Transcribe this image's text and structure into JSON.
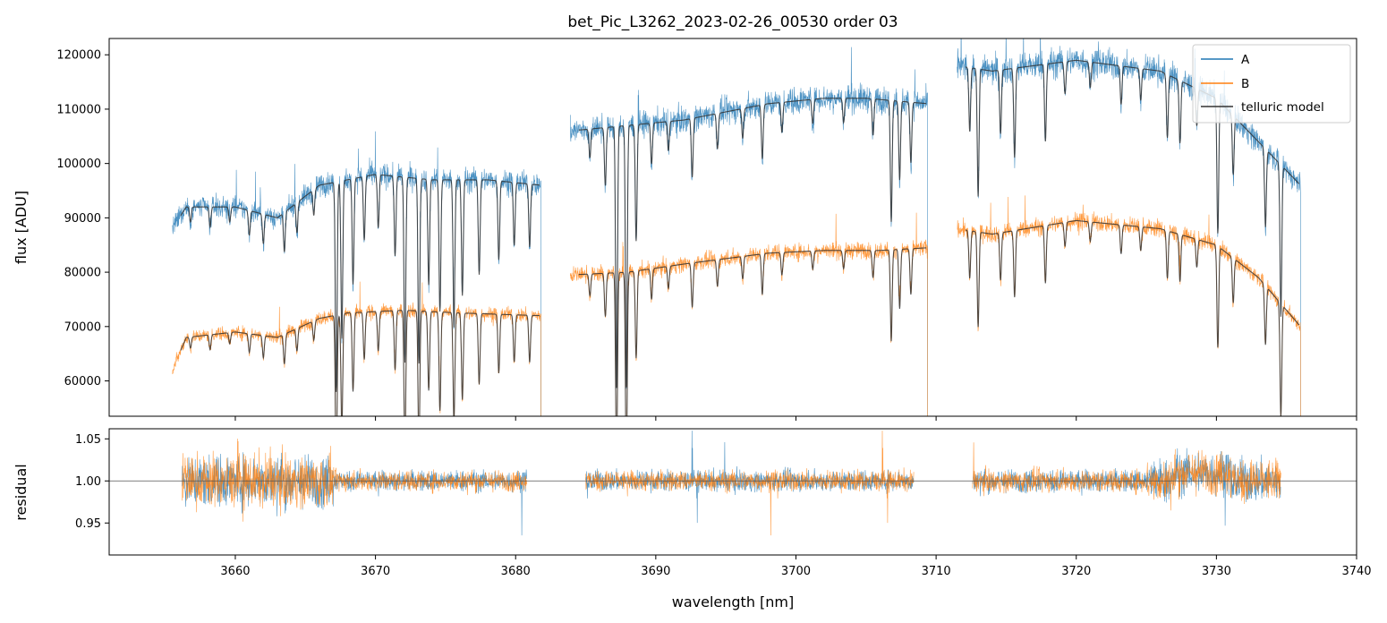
{
  "figure": {
    "title": "bet_Pic_L3262_2023-02-26_00530  order 03"
  },
  "colors": {
    "A": "#1f77b4",
    "B": "#ff7f0e",
    "telluric": "#333333"
  },
  "chart_data": [
    {
      "type": "line",
      "panel": "top",
      "title": "bet_Pic_L3262_2023-02-26_00530  order 03",
      "xlabel": "",
      "ylabel": "flux [ADU]",
      "xlim": [
        3651,
        3740
      ],
      "ylim": [
        53500,
        123000
      ],
      "yticks": [
        60000,
        70000,
        80000,
        90000,
        100000,
        110000,
        120000
      ],
      "ytick_labels": [
        "60000",
        "70000",
        "80000",
        "90000",
        "100000",
        "110000",
        "120000"
      ],
      "grid": false,
      "legend": "top-right",
      "legend_entries": [
        "A",
        "B",
        "telluric model"
      ],
      "segments": [
        {
          "x0": 3655.5,
          "x1": 3681.8
        },
        {
          "x0": 3683.9,
          "x1": 3709.4
        },
        {
          "x0": 3711.5,
          "x1": 3736.0
        }
      ],
      "series": [
        {
          "name": "A",
          "continuum": [
            [
              3655.5,
              88000
            ],
            [
              3656.5,
              92000
            ],
            [
              3660,
              92000
            ],
            [
              3663,
              90000
            ],
            [
              3666,
              96000
            ],
            [
              3668,
              97000
            ],
            [
              3670,
              98000
            ],
            [
              3674,
              97000
            ],
            [
              3678,
              97000
            ],
            [
              3681.8,
              96000
            ],
            [
              3683.9,
              106000
            ],
            [
              3688,
              107000
            ],
            [
              3692,
              108000
            ],
            [
              3698,
              111000
            ],
            [
              3702,
              112000
            ],
            [
              3705,
              112000
            ],
            [
              3709.4,
              111000
            ],
            [
              3711.5,
              118000
            ],
            [
              3714,
              117000
            ],
            [
              3720,
              119000
            ],
            [
              3726,
              117000
            ],
            [
              3730,
              112000
            ],
            [
              3733,
              104000
            ],
            [
              3736,
              96000
            ]
          ]
        },
        {
          "name": "B",
          "continuum": [
            [
              3655.5,
              62000
            ],
            [
              3656.5,
              68000
            ],
            [
              3660,
              69000
            ],
            [
              3663,
              68000
            ],
            [
              3666,
              71500
            ],
            [
              3668,
              72500
            ],
            [
              3672,
              73000
            ],
            [
              3676,
              72500
            ],
            [
              3681.8,
              72000
            ],
            [
              3683.9,
              79500
            ],
            [
              3688,
              80000
            ],
            [
              3692,
              81500
            ],
            [
              3698,
              83500
            ],
            [
              3702,
              84000
            ],
            [
              3706,
              84000
            ],
            [
              3709.4,
              84500
            ],
            [
              3711.5,
              88000
            ],
            [
              3714,
              87000
            ],
            [
              3720,
              89500
            ],
            [
              3726,
              88000
            ],
            [
              3730,
              85000
            ],
            [
              3733,
              79000
            ],
            [
              3736,
              70000
            ]
          ]
        }
      ],
      "telluric_lines": [
        {
          "x": 3656.8,
          "depth": 0.03
        },
        {
          "x": 3658.2,
          "depth": 0.04
        },
        {
          "x": 3659.6,
          "depth": 0.03
        },
        {
          "x": 3661.0,
          "depth": 0.05
        },
        {
          "x": 3662.0,
          "depth": 0.06
        },
        {
          "x": 3663.5,
          "depth": 0.08
        },
        {
          "x": 3664.4,
          "depth": 0.06
        },
        {
          "x": 3665.6,
          "depth": 0.05
        },
        {
          "x": 3667.2,
          "depth": 0.4
        },
        {
          "x": 3667.6,
          "depth": 0.3
        },
        {
          "x": 3668.4,
          "depth": 0.2
        },
        {
          "x": 3669.2,
          "depth": 0.12
        },
        {
          "x": 3670.2,
          "depth": 0.1
        },
        {
          "x": 3671.4,
          "depth": 0.15
        },
        {
          "x": 3672.1,
          "depth": 0.35
        },
        {
          "x": 3673.1,
          "depth": 0.35
        },
        {
          "x": 3673.8,
          "depth": 0.2
        },
        {
          "x": 3674.6,
          "depth": 0.25
        },
        {
          "x": 3675.6,
          "depth": 0.28
        },
        {
          "x": 3676.2,
          "depth": 0.22
        },
        {
          "x": 3677.4,
          "depth": 0.18
        },
        {
          "x": 3678.8,
          "depth": 0.15
        },
        {
          "x": 3679.9,
          "depth": 0.12
        },
        {
          "x": 3681.0,
          "depth": 0.12
        },
        {
          "x": 3685.3,
          "depth": 0.05
        },
        {
          "x": 3686.4,
          "depth": 0.1
        },
        {
          "x": 3687.2,
          "depth": 0.45
        },
        {
          "x": 3687.9,
          "depth": 0.45
        },
        {
          "x": 3688.6,
          "depth": 0.2
        },
        {
          "x": 3689.7,
          "depth": 0.07
        },
        {
          "x": 3690.9,
          "depth": 0.05
        },
        {
          "x": 3692.6,
          "depth": 0.1
        },
        {
          "x": 3694.4,
          "depth": 0.06
        },
        {
          "x": 3696.2,
          "depth": 0.05
        },
        {
          "x": 3697.6,
          "depth": 0.09
        },
        {
          "x": 3699.0,
          "depth": 0.05
        },
        {
          "x": 3701.2,
          "depth": 0.04
        },
        {
          "x": 3703.4,
          "depth": 0.04
        },
        {
          "x": 3705.5,
          "depth": 0.06
        },
        {
          "x": 3706.8,
          "depth": 0.2
        },
        {
          "x": 3707.4,
          "depth": 0.13
        },
        {
          "x": 3708.2,
          "depth": 0.1
        },
        {
          "x": 3712.4,
          "depth": 0.1
        },
        {
          "x": 3713.0,
          "depth": 0.2
        },
        {
          "x": 3714.6,
          "depth": 0.1
        },
        {
          "x": 3715.6,
          "depth": 0.14
        },
        {
          "x": 3717.8,
          "depth": 0.12
        },
        {
          "x": 3719.2,
          "depth": 0.05
        },
        {
          "x": 3721.0,
          "depth": 0.04
        },
        {
          "x": 3723.2,
          "depth": 0.06
        },
        {
          "x": 3724.6,
          "depth": 0.05
        },
        {
          "x": 3726.5,
          "depth": 0.1
        },
        {
          "x": 3727.4,
          "depth": 0.1
        },
        {
          "x": 3728.6,
          "depth": 0.06
        },
        {
          "x": 3730.1,
          "depth": 0.22
        },
        {
          "x": 3731.2,
          "depth": 0.1
        },
        {
          "x": 3733.5,
          "depth": 0.14
        },
        {
          "x": 3734.6,
          "depth": 0.28
        }
      ]
    },
    {
      "type": "line",
      "panel": "bottom",
      "xlabel": "wavelength [nm]",
      "ylabel": "residual",
      "xlim": [
        3651,
        3740
      ],
      "ylim": [
        0.912,
        1.062
      ],
      "yticks": [
        0.95,
        1.0,
        1.05
      ],
      "ytick_labels": [
        "0.95",
        "1.00",
        "1.05"
      ],
      "xticks": [
        3660,
        3670,
        3680,
        3690,
        3700,
        3710,
        3720,
        3730,
        3740
      ],
      "xtick_labels": [
        "3660",
        "3670",
        "3680",
        "3690",
        "3700",
        "3710",
        "3720",
        "3730",
        "3740"
      ],
      "reference_line": 1.0,
      "grid": false,
      "segments": [
        {
          "x0": 3656.2,
          "x1": 3680.8
        },
        {
          "x0": 3685.0,
          "x1": 3708.4
        },
        {
          "x0": 3712.6,
          "x1": 3734.6
        }
      ],
      "series": [
        {
          "name": "A"
        },
        {
          "name": "B"
        }
      ]
    }
  ]
}
